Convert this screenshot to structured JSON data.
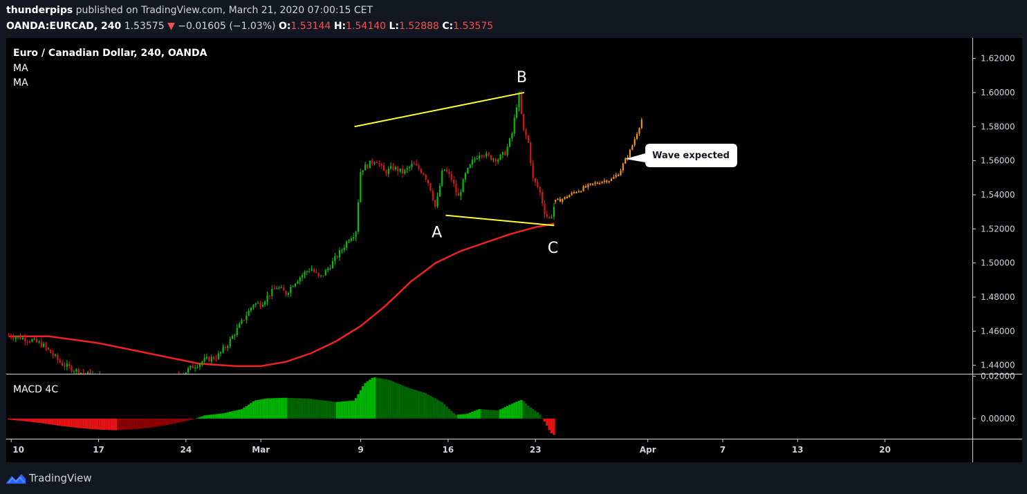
{
  "header": {
    "author": "thunderpips",
    "published": "published on TradingView.com, March 21, 2020 07:00:15 CET",
    "symbol": "OANDA:EURCAD, 240",
    "last": "1.53575",
    "change": "−0.01605 (−1.03%)",
    "o_label": "O:",
    "o_value": "1.53144",
    "h_label": "H:",
    "h_value": "1.54140",
    "l_label": "L:",
    "l_value": "1.52888",
    "c_label": "C:",
    "c_value": "1.53575"
  },
  "legend": {
    "title": "Euro / Canadian Dollar, 240, OANDA",
    "ma1": "MA",
    "ma2": "MA",
    "macd": "MACD 4C"
  },
  "annotations": {
    "wave_points": [
      "A",
      "B",
      "C"
    ],
    "callout": "Wave expected"
  },
  "footer": {
    "brand": "TradingView"
  },
  "colors": {
    "up": "#00c800",
    "down": "#e31414",
    "ma": "#f02222",
    "projection": "#ff9a00",
    "wave_lines": "#ffff2e",
    "macd_pos_strong": "#00b300",
    "macd_pos_weak": "#006400",
    "macd_neg": "#8b0000",
    "background": "#000000",
    "page": "#131722"
  },
  "chart_data": [
    {
      "type": "candlestick",
      "title": "Euro / Canadian Dollar, 240, OANDA",
      "ylim": [
        1.435,
        1.632
      ],
      "y_ticks": [
        "1.62000",
        "1.60000",
        "1.58000",
        "1.56000",
        "1.54000",
        "1.52000",
        "1.50000",
        "1.48000",
        "1.46000",
        "1.44000"
      ],
      "x_ticks": [
        "10",
        "17",
        "24",
        "Mar",
        "9",
        "16",
        "23",
        "Apr",
        "7",
        "13",
        "20"
      ],
      "x_tick_days": [
        10,
        17,
        24,
        30,
        38,
        45,
        52,
        61,
        67,
        73,
        80
      ],
      "x_domain_days": [
        9.6,
        87
      ],
      "price_path": [
        [
          9.8,
          1.4575
        ],
        [
          10.5,
          1.4565
        ],
        [
          11.5,
          1.455
        ],
        [
          12.5,
          1.452
        ],
        [
          13.2,
          1.447
        ],
        [
          14,
          1.441
        ],
        [
          14.8,
          1.438
        ],
        [
          15.5,
          1.436
        ],
        [
          16.5,
          1.434
        ],
        [
          17.5,
          1.433
        ],
        [
          18.5,
          1.431
        ],
        [
          19.5,
          1.429
        ],
        [
          20.5,
          1.428
        ],
        [
          21.5,
          1.427
        ],
        [
          22.5,
          1.43
        ],
        [
          23.5,
          1.434
        ],
        [
          24.5,
          1.439
        ],
        [
          25.5,
          1.443
        ],
        [
          26.5,
          1.445
        ],
        [
          27.3,
          1.452
        ],
        [
          28,
          1.46
        ],
        [
          28.7,
          1.468
        ],
        [
          29.4,
          1.476
        ],
        [
          30,
          1.476
        ],
        [
          30.6,
          1.481
        ],
        [
          31.3,
          1.486
        ],
        [
          32,
          1.482
        ],
        [
          32.6,
          1.488
        ],
        [
          33.3,
          1.493
        ],
        [
          34,
          1.497
        ],
        [
          34.7,
          1.491
        ],
        [
          35.3,
          1.496
        ],
        [
          35.9,
          1.502
        ],
        [
          36.5,
          1.508
        ],
        [
          37.1,
          1.515
        ],
        [
          37.6,
          1.518
        ],
        [
          38,
          1.555
        ],
        [
          38.5,
          1.557
        ],
        [
          39.2,
          1.561
        ],
        [
          39.9,
          1.553
        ],
        [
          40.6,
          1.556
        ],
        [
          41.4,
          1.553
        ],
        [
          42.2,
          1.558
        ],
        [
          43,
          1.553
        ],
        [
          43.5,
          1.546
        ],
        [
          44,
          1.532
        ],
        [
          44.6,
          1.556
        ],
        [
          45.3,
          1.549
        ],
        [
          45.8,
          1.538
        ],
        [
          46.4,
          1.552
        ],
        [
          47,
          1.56
        ],
        [
          47.6,
          1.565
        ],
        [
          48.3,
          1.562
        ],
        [
          49,
          1.561
        ],
        [
          49.6,
          1.565
        ],
        [
          50.1,
          1.575
        ],
        [
          50.5,
          1.593
        ],
        [
          50.7,
          1.598
        ],
        [
          51,
          1.578
        ],
        [
          51.4,
          1.572
        ],
        [
          51.8,
          1.549
        ],
        [
          52.3,
          1.543
        ],
        [
          52.8,
          1.528
        ],
        [
          53.2,
          1.526
        ],
        [
          53.6,
          1.536
        ]
      ],
      "projection_path": [
        [
          53.6,
          1.536
        ],
        [
          54.3,
          1.538
        ],
        [
          55.2,
          1.542
        ],
        [
          56.2,
          1.545
        ],
        [
          57.2,
          1.548
        ],
        [
          58.1,
          1.549
        ],
        [
          58.7,
          1.553
        ],
        [
          59.1,
          1.559
        ],
        [
          59.6,
          1.566
        ],
        [
          60,
          1.574
        ],
        [
          60.4,
          1.582
        ],
        [
          60.6,
          1.586
        ]
      ],
      "ma_path": [
        [
          9.8,
          1.457
        ],
        [
          13,
          1.457
        ],
        [
          17,
          1.453
        ],
        [
          21,
          1.447
        ],
        [
          25,
          1.441
        ],
        [
          28,
          1.4395
        ],
        [
          30,
          1.4395
        ],
        [
          32,
          1.442
        ],
        [
          34,
          1.447
        ],
        [
          36,
          1.454
        ],
        [
          38,
          1.463
        ],
        [
          40,
          1.475
        ],
        [
          42,
          1.489
        ],
        [
          44,
          1.5
        ],
        [
          46,
          1.507
        ],
        [
          48,
          1.512
        ],
        [
          50,
          1.517
        ],
        [
          52,
          1.521
        ],
        [
          53.5,
          1.523
        ]
      ],
      "wave_lines": [
        {
          "from": [
            37.5,
            1.58
          ],
          "to": [
            51.1,
            1.6
          ]
        },
        {
          "from": [
            44.8,
            1.528
          ],
          "to": [
            53.5,
            1.522
          ]
        }
      ],
      "wave_labels": [
        {
          "label": "A",
          "x": 44.1,
          "y": 1.515
        },
        {
          "label": "B",
          "x": 50.9,
          "y": 1.606
        },
        {
          "label": "C",
          "x": 53.4,
          "y": 1.506
        }
      ]
    },
    {
      "type": "bar",
      "title": "MACD 4C",
      "ylim": [
        -0.0095,
        0.0211
      ],
      "y_ticks": [
        "0.02000",
        "0.00000"
      ],
      "histogram_path": [
        [
          9.8,
          -0.0005
        ],
        [
          11,
          -0.0012
        ],
        [
          12.5,
          -0.0022
        ],
        [
          14,
          -0.0035
        ],
        [
          15.5,
          -0.0045
        ],
        [
          17,
          -0.0052
        ],
        [
          18.5,
          -0.0055
        ],
        [
          20,
          -0.005
        ],
        [
          21.5,
          -0.004
        ],
        [
          23,
          -0.0025
        ],
        [
          24.5,
          -0.0005
        ],
        [
          25.5,
          0.0015
        ],
        [
          27,
          0.0025
        ],
        [
          28.5,
          0.0045
        ],
        [
          29.5,
          0.0085
        ],
        [
          30.5,
          0.0095
        ],
        [
          32,
          0.0098
        ],
        [
          34,
          0.0093
        ],
        [
          36,
          0.0078
        ],
        [
          37.5,
          0.0085
        ],
        [
          38.3,
          0.0165
        ],
        [
          39,
          0.0195
        ],
        [
          40.3,
          0.0182
        ],
        [
          41.8,
          0.0145
        ],
        [
          43.2,
          0.012
        ],
        [
          44.5,
          0.0078
        ],
        [
          45.6,
          0.0018
        ],
        [
          46.5,
          0.0022
        ],
        [
          47.5,
          0.0045
        ],
        [
          49,
          0.0038
        ],
        [
          50.3,
          0.0075
        ],
        [
          50.9,
          0.0088
        ],
        [
          51.6,
          0.0052
        ],
        [
          52.3,
          0.0025
        ],
        [
          52.8,
          -0.002
        ],
        [
          53.2,
          -0.0065
        ],
        [
          53.5,
          -0.0078
        ]
      ]
    }
  ]
}
